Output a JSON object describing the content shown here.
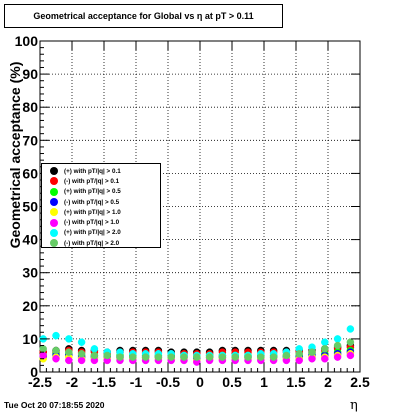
{
  "chart_data": {
    "type": "scatter",
    "title": "Geometrical acceptance for Global vs  η at pT > 0.11",
    "xlabel": "η",
    "ylabel": "Geometrical acceptance (%)",
    "xlim": [
      -2.5,
      2.5
    ],
    "ylim": [
      0,
      100
    ],
    "x_ticks": [
      -2.5,
      -2,
      -1.5,
      -1,
      -0.5,
      0,
      0.5,
      1,
      1.5,
      2,
      2.5
    ],
    "x_tick_labels": [
      "-2.5",
      "-2",
      "-1.5",
      "-1",
      "-0.5",
      "0",
      "0.5",
      "1",
      "1.5",
      "2",
      "2.5"
    ],
    "y_ticks": [
      0,
      10,
      20,
      30,
      40,
      50,
      60,
      70,
      80,
      90,
      100
    ],
    "y_tick_labels": [
      "0",
      "10",
      "20",
      "30",
      "40",
      "50",
      "60",
      "70",
      "80",
      "90",
      "100"
    ],
    "grid": true,
    "legend_position": "left-middle",
    "x": [
      -2.45,
      -2.25,
      -2.05,
      -1.85,
      -1.65,
      -1.45,
      -1.25,
      -1.05,
      -0.85,
      -0.65,
      -0.45,
      -0.25,
      -0.05,
      0.15,
      0.35,
      0.55,
      0.75,
      0.95,
      1.15,
      1.35,
      1.55,
      1.75,
      1.95,
      2.15,
      2.35
    ],
    "series": [
      {
        "name": "(+) with pT/|q| > 0.1",
        "color": "#000000",
        "values": [
          6,
          6.5,
          7,
          6.5,
          6.5,
          6,
          6.5,
          6.5,
          6.5,
          6.5,
          6,
          6,
          6,
          6,
          6.5,
          6.5,
          6.5,
          6.5,
          6.5,
          6.5,
          6.5,
          6.5,
          7,
          7.5,
          8
        ]
      },
      {
        "name": "(-) with pT/|q| > 0.1",
        "color": "#ff0000",
        "values": [
          6,
          6,
          6.5,
          6,
          6,
          5.5,
          6,
          6,
          6,
          6,
          5.5,
          5.5,
          5.5,
          5.5,
          6,
          6,
          6,
          6,
          6,
          6,
          6,
          6,
          6.5,
          7,
          7.5
        ]
      },
      {
        "name": "(+) with pT/|q| > 0.5",
        "color": "#00ff00",
        "values": [
          5,
          5.5,
          5.5,
          5,
          5,
          5,
          5,
          5,
          5,
          5,
          5,
          5,
          4.5,
          5,
          5,
          5,
          5,
          5,
          5,
          5,
          5,
          5.5,
          5.5,
          6,
          6.5
        ]
      },
      {
        "name": "(-) with pT/|q| > 0.5",
        "color": "#0000ff",
        "values": [
          4.5,
          5,
          5,
          4.5,
          4.5,
          4.5,
          4.5,
          4.5,
          4.5,
          4.5,
          4.5,
          4.5,
          4,
          4.5,
          4.5,
          4.5,
          4.5,
          4.5,
          4.5,
          4.5,
          4.5,
          5,
          5,
          5.5,
          6
        ]
      },
      {
        "name": "(+) with pT/|q| > 1.0",
        "color": "#ffff00",
        "values": [
          4,
          4.5,
          4.5,
          4,
          4,
          4,
          4,
          4,
          4,
          4,
          4,
          4,
          3.5,
          4,
          4,
          4,
          4,
          4,
          4,
          4,
          4,
          4.5,
          4.5,
          5,
          5.5
        ]
      },
      {
        "name": "(-) with pT/|q| > 1.0",
        "color": "#ff00ff",
        "values": [
          5,
          4,
          3.5,
          3.5,
          3.5,
          3.5,
          3.5,
          3.5,
          3.5,
          3.5,
          3.5,
          3.5,
          3,
          3.5,
          3.5,
          3.5,
          3.5,
          3.5,
          3.5,
          3.5,
          3.5,
          4,
          4,
          4.5,
          5
        ]
      },
      {
        "name": "(+) with pT/|q| > 2.0",
        "color": "#00ffff",
        "values": [
          10,
          11,
          10,
          9,
          7,
          6,
          6,
          5.5,
          5.5,
          5.5,
          5.5,
          5,
          5,
          5,
          5,
          5,
          5,
          5.5,
          5.5,
          6,
          7,
          7.5,
          9,
          10,
          13
        ]
      },
      {
        "name": "(-) with pT/|q| > 2.0",
        "color": "#66cc66",
        "values": [
          7,
          6.5,
          6,
          5.5,
          5,
          5,
          4.5,
          4.5,
          4.5,
          4.5,
          4.5,
          4.5,
          4.5,
          4.5,
          4.5,
          4.5,
          4.5,
          4.5,
          4.5,
          5,
          5.5,
          6,
          7,
          8,
          9
        ]
      }
    ]
  },
  "footer": {
    "datestamp": "Tue Oct 20 07:18:55 2020"
  }
}
